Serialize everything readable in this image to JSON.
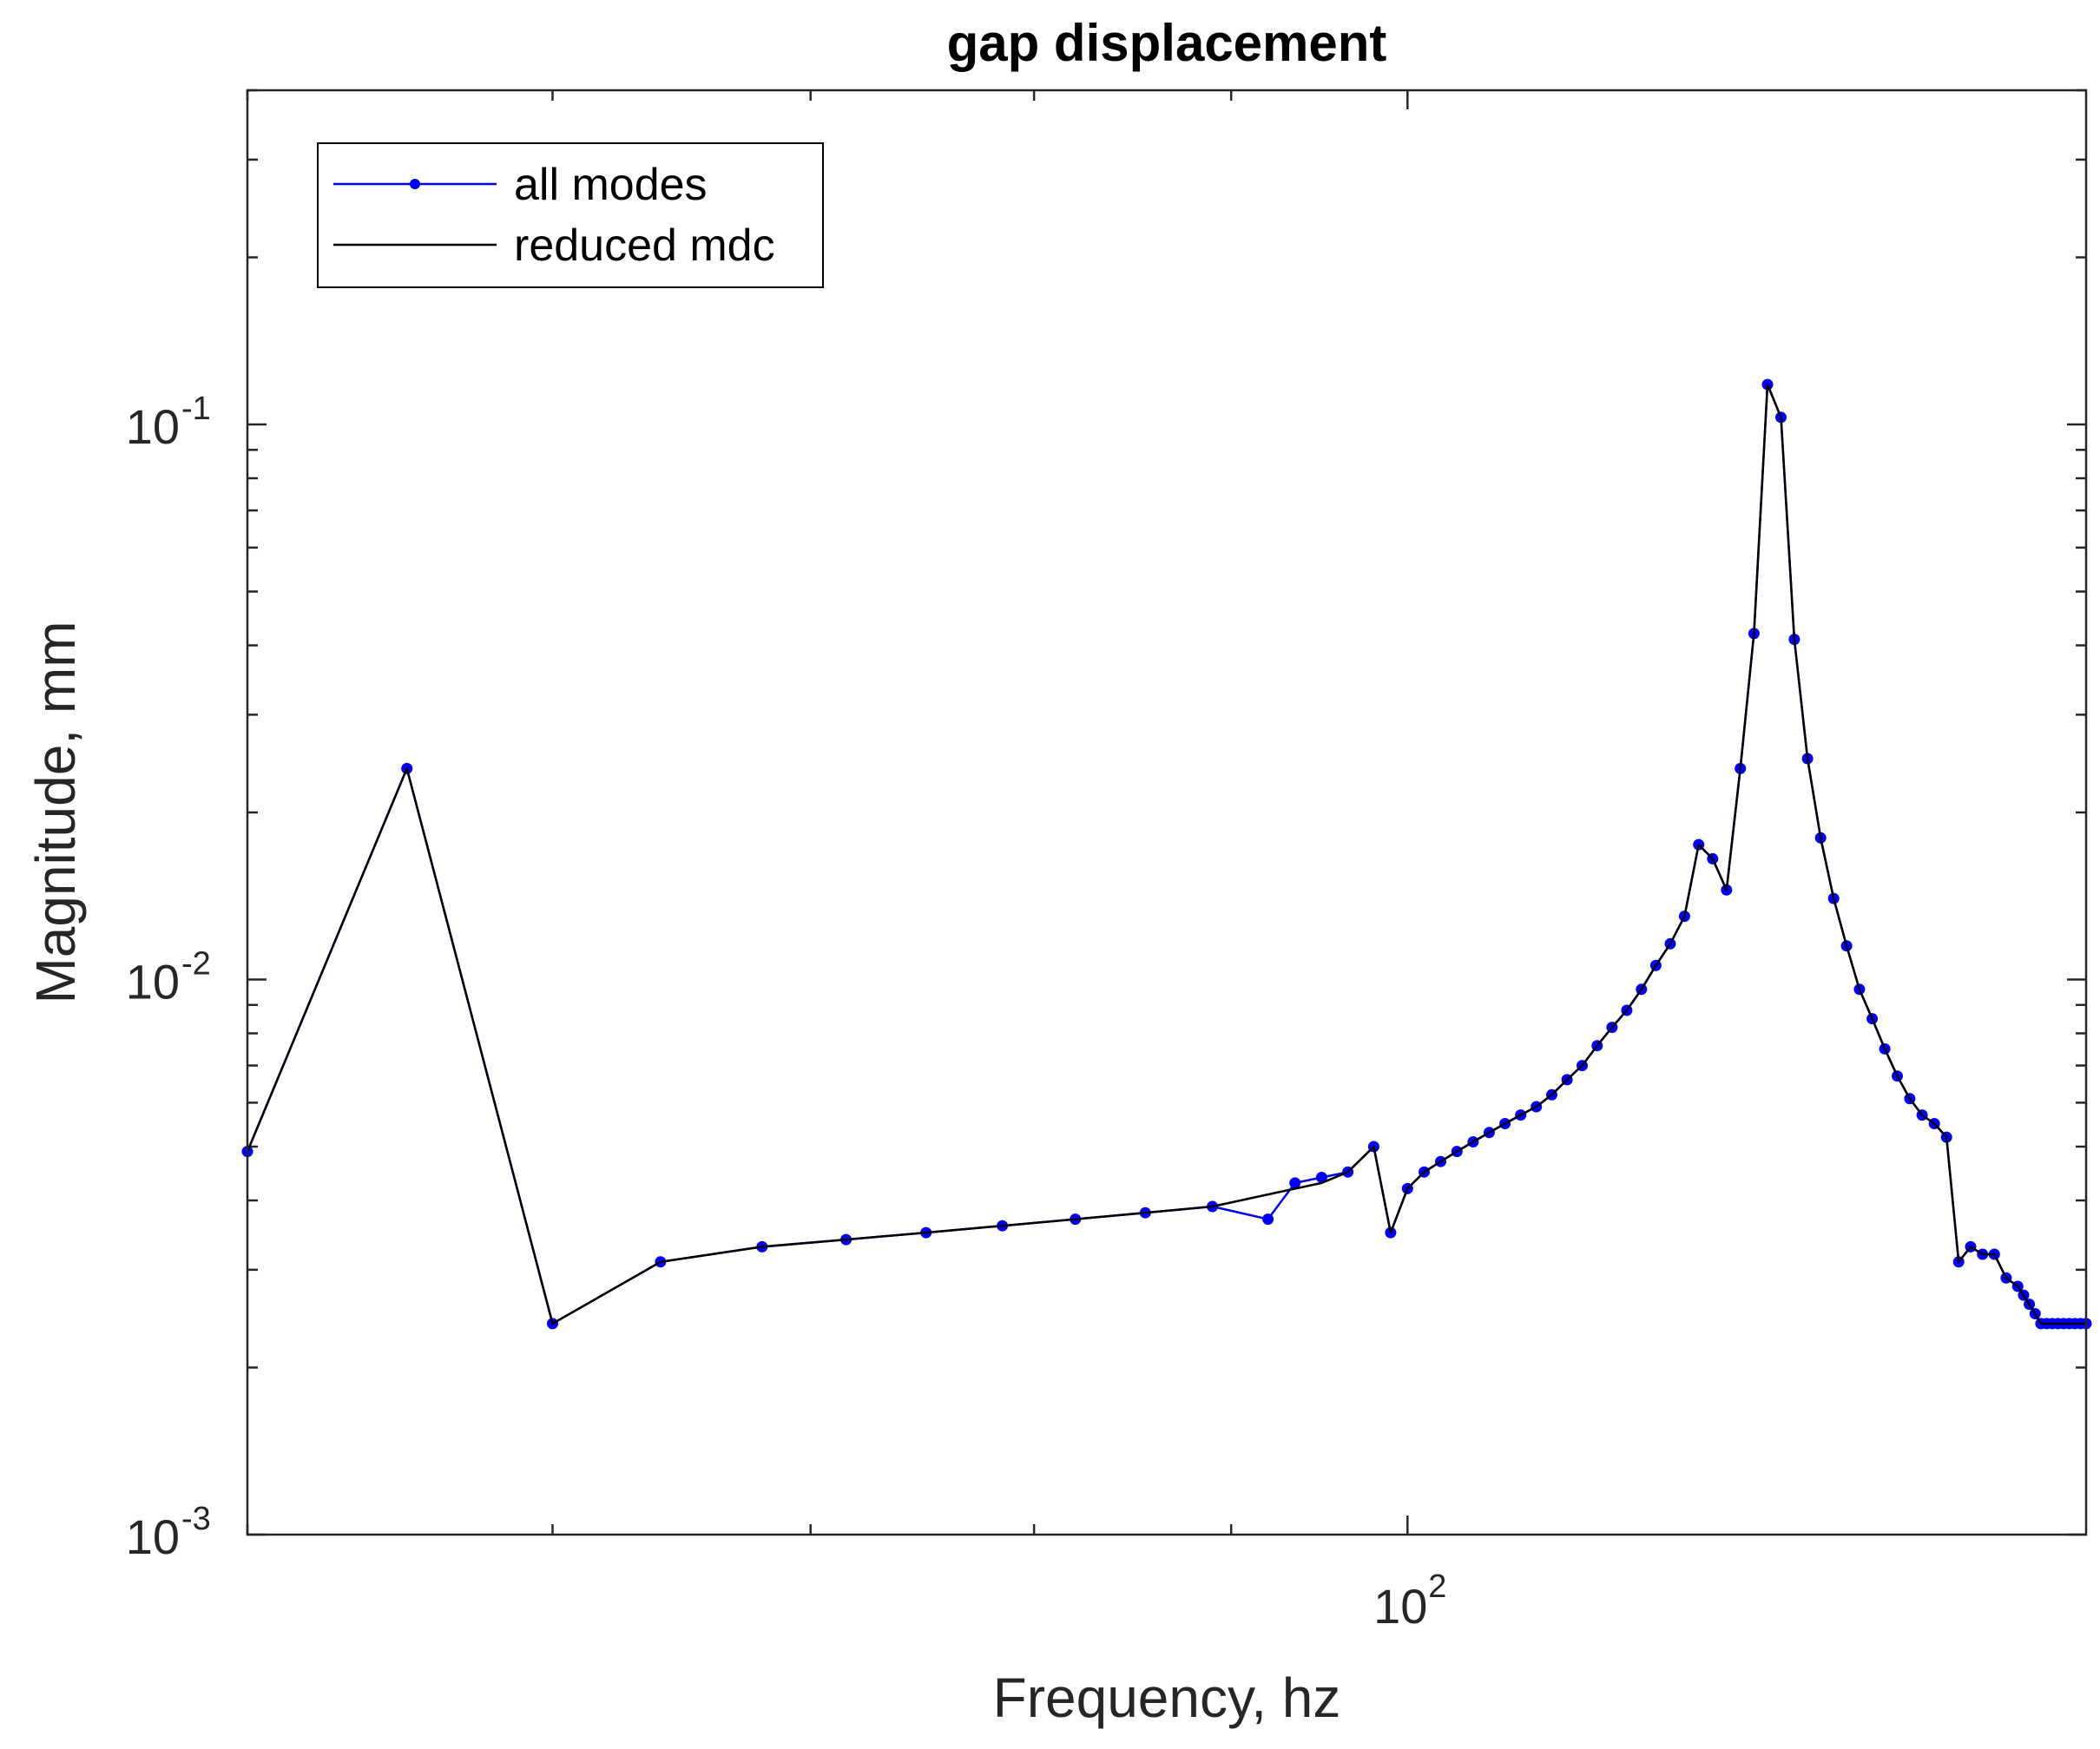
{
  "chart_data": {
    "type": "line",
    "title": "gap displacement",
    "xlabel": "Frequency, hz",
    "ylabel": "Magnitude, mm",
    "xscale": "log",
    "yscale": "log",
    "xlim": [
      50,
      150
    ],
    "ylim": [
      0.001,
      0.4
    ],
    "x_tick_labels": [
      {
        "base": "10",
        "exp": "2",
        "value": 100
      }
    ],
    "y_tick_labels": [
      {
        "base": "10",
        "exp": "-3",
        "value": 0.001
      },
      {
        "base": "10",
        "exp": "-2",
        "value": 0.01
      },
      {
        "base": "10",
        "exp": "-1",
        "value": 0.1
      }
    ],
    "grid": false,
    "legend_position": "top-left",
    "series": [
      {
        "name": "all modes",
        "color": "#0000ff",
        "marker": "dot",
        "x": [
          50.0,
          55.0,
          60.0,
          64.0,
          68.0,
          71.5,
          75.0,
          78.5,
          82.0,
          85.5,
          89.0,
          92.0,
          93.5,
          95.0,
          96.5,
          98.0,
          99.0,
          100.0,
          101.0,
          102.0,
          103.0,
          104.0,
          105.0,
          106.0,
          107.0,
          108.0,
          109.0,
          110.0,
          111.0,
          112.0,
          113.0,
          114.0,
          115.0,
          116.0,
          117.0,
          118.0,
          119.0,
          120.0,
          121.0,
          122.0,
          123.0,
          124.0,
          125.0,
          126.0,
          127.0,
          128.0,
          129.0,
          130.0,
          131.0,
          132.0,
          133.0,
          134.0,
          135.0,
          136.0,
          137.0,
          138.0,
          139.0,
          140.0,
          141.0,
          142.0,
          143.0,
          144.0,
          144.5,
          145.0,
          145.5,
          146.0,
          146.5,
          147.0,
          147.5,
          148.0,
          148.5,
          149.0,
          149.5,
          150.0
        ],
        "y": [
          0.0049,
          0.024,
          0.0024,
          0.0031,
          0.0033,
          0.0034,
          0.0035,
          0.0036,
          0.0037,
          0.0038,
          0.0039,
          0.0037,
          0.0043,
          0.0044,
          0.0045,
          0.005,
          0.0035,
          0.0042,
          0.0045,
          0.0047,
          0.0049,
          0.0051,
          0.0053,
          0.0055,
          0.0057,
          0.0059,
          0.0062,
          0.0066,
          0.007,
          0.0076,
          0.0082,
          0.0088,
          0.0096,
          0.0106,
          0.0116,
          0.013,
          0.0175,
          0.0165,
          0.0145,
          0.024,
          0.042,
          0.118,
          0.103,
          0.041,
          0.025,
          0.018,
          0.014,
          0.0115,
          0.0096,
          0.0085,
          0.0075,
          0.0067,
          0.0061,
          0.0057,
          0.0055,
          0.0052,
          0.0031,
          0.0033,
          0.0032,
          0.0032,
          0.0029,
          0.0028,
          0.0027,
          0.0026,
          0.0025,
          0.0024,
          0.0024,
          0.0024,
          0.0024,
          0.0024,
          0.0024,
          0.0024,
          0.0024,
          0.0024
        ]
      },
      {
        "name": "reduced mdc",
        "color": "#000000",
        "marker": "none",
        "x": [
          50.0,
          55.0,
          60.0,
          64.0,
          68.0,
          71.5,
          75.0,
          78.5,
          82.0,
          85.5,
          89.0,
          92.0,
          95.0,
          96.5,
          98.0,
          99.0,
          100.0,
          101.0,
          102.0,
          103.0,
          104.0,
          105.0,
          106.0,
          107.0,
          108.0,
          109.0,
          110.0,
          111.0,
          112.0,
          113.0,
          114.0,
          115.0,
          116.0,
          117.0,
          118.0,
          119.0,
          120.0,
          121.0,
          122.0,
          123.0,
          124.0,
          125.0,
          126.0,
          127.0,
          128.0,
          129.0,
          130.0,
          131.0,
          132.0,
          133.0,
          134.0,
          135.0,
          136.0,
          137.0,
          138.0,
          139.0,
          140.0,
          141.0,
          142.0,
          143.0,
          144.0,
          145.0,
          146.0,
          147.0,
          148.0,
          149.0,
          150.0
        ],
        "y": [
          0.0049,
          0.024,
          0.0024,
          0.0031,
          0.0033,
          0.0034,
          0.0035,
          0.0036,
          0.0037,
          0.0038,
          0.0039,
          0.0041,
          0.0043,
          0.0045,
          0.005,
          0.0035,
          0.0042,
          0.0045,
          0.0047,
          0.0049,
          0.0051,
          0.0053,
          0.0055,
          0.0057,
          0.0059,
          0.0062,
          0.0066,
          0.007,
          0.0076,
          0.0082,
          0.0088,
          0.0096,
          0.0106,
          0.0116,
          0.013,
          0.0175,
          0.0165,
          0.0145,
          0.024,
          0.042,
          0.118,
          0.103,
          0.041,
          0.025,
          0.018,
          0.014,
          0.0115,
          0.0096,
          0.0085,
          0.0075,
          0.0067,
          0.0061,
          0.0057,
          0.0055,
          0.0052,
          0.0031,
          0.0033,
          0.0032,
          0.0032,
          0.0029,
          0.0028,
          0.0026,
          0.0024,
          0.0024,
          0.0024,
          0.0024,
          0.0024
        ]
      }
    ]
  }
}
